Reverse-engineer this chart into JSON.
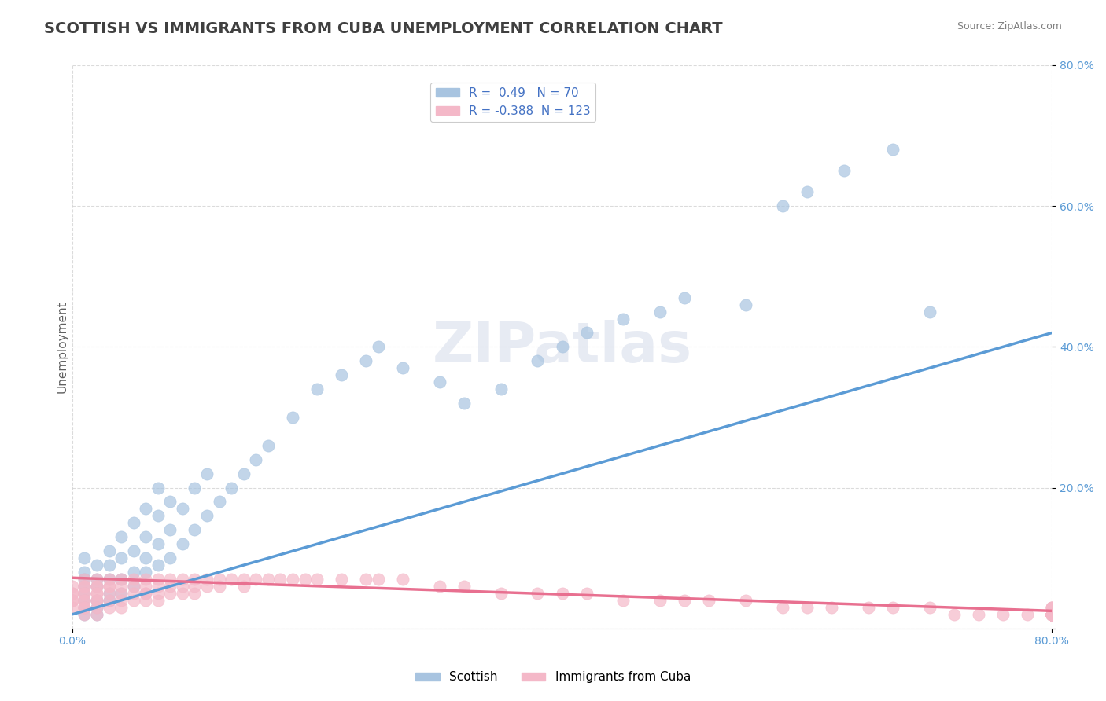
{
  "title": "SCOTTISH VS IMMIGRANTS FROM CUBA UNEMPLOYMENT CORRELATION CHART",
  "source": "Source: ZipAtlas.com",
  "xlabel": "",
  "ylabel": "Unemployment",
  "x_min": 0.0,
  "x_max": 0.8,
  "y_min": 0.0,
  "y_max": 0.8,
  "x_ticks": [
    0.0,
    0.1,
    0.2,
    0.3,
    0.4,
    0.5,
    0.6,
    0.7,
    0.8
  ],
  "x_tick_labels": [
    "0.0%",
    "",
    "",
    "",
    "",
    "",
    "",
    "",
    "80.0%"
  ],
  "y_tick_labels": [
    "",
    "20.0%",
    "40.0%",
    "60.0%",
    "80.0%"
  ],
  "y_ticks": [
    0.0,
    0.2,
    0.4,
    0.6,
    0.8
  ],
  "grid_color": "#cccccc",
  "background_color": "#ffffff",
  "watermark": "ZIPatlas",
  "series": [
    {
      "name": "Scottish",
      "R": 0.49,
      "N": 70,
      "color": "#a8c4e0",
      "line_color": "#5b9bd5",
      "marker": "o",
      "x": [
        0.01,
        0.01,
        0.01,
        0.01,
        0.01,
        0.01,
        0.01,
        0.01,
        0.02,
        0.02,
        0.02,
        0.02,
        0.02,
        0.02,
        0.03,
        0.03,
        0.03,
        0.03,
        0.03,
        0.04,
        0.04,
        0.04,
        0.04,
        0.05,
        0.05,
        0.05,
        0.05,
        0.06,
        0.06,
        0.06,
        0.06,
        0.07,
        0.07,
        0.07,
        0.07,
        0.08,
        0.08,
        0.08,
        0.09,
        0.09,
        0.1,
        0.1,
        0.11,
        0.11,
        0.12,
        0.13,
        0.14,
        0.15,
        0.16,
        0.18,
        0.2,
        0.22,
        0.24,
        0.25,
        0.27,
        0.3,
        0.32,
        0.35,
        0.38,
        0.4,
        0.42,
        0.45,
        0.48,
        0.5,
        0.55,
        0.58,
        0.6,
        0.63,
        0.67,
        0.7
      ],
      "y": [
        0.02,
        0.03,
        0.04,
        0.05,
        0.06,
        0.07,
        0.08,
        0.1,
        0.02,
        0.03,
        0.04,
        0.06,
        0.07,
        0.09,
        0.04,
        0.05,
        0.07,
        0.09,
        0.11,
        0.05,
        0.07,
        0.1,
        0.13,
        0.06,
        0.08,
        0.11,
        0.15,
        0.08,
        0.1,
        0.13,
        0.17,
        0.09,
        0.12,
        0.16,
        0.2,
        0.1,
        0.14,
        0.18,
        0.12,
        0.17,
        0.14,
        0.2,
        0.16,
        0.22,
        0.18,
        0.2,
        0.22,
        0.24,
        0.26,
        0.3,
        0.34,
        0.36,
        0.38,
        0.4,
        0.37,
        0.35,
        0.32,
        0.34,
        0.38,
        0.4,
        0.42,
        0.44,
        0.45,
        0.47,
        0.46,
        0.6,
        0.62,
        0.65,
        0.68,
        0.45
      ],
      "trend_x": [
        0.0,
        0.8
      ],
      "trend_y": [
        0.02,
        0.42
      ]
    },
    {
      "name": "Immigrants from Cuba",
      "R": -0.388,
      "N": 123,
      "color": "#f4b8c8",
      "line_color": "#e87090",
      "marker": "o",
      "x": [
        0.0,
        0.0,
        0.0,
        0.0,
        0.0,
        0.0,
        0.01,
        0.01,
        0.01,
        0.01,
        0.01,
        0.01,
        0.01,
        0.01,
        0.01,
        0.01,
        0.02,
        0.02,
        0.02,
        0.02,
        0.02,
        0.02,
        0.02,
        0.02,
        0.02,
        0.03,
        0.03,
        0.03,
        0.03,
        0.03,
        0.03,
        0.04,
        0.04,
        0.04,
        0.04,
        0.04,
        0.05,
        0.05,
        0.05,
        0.05,
        0.06,
        0.06,
        0.06,
        0.06,
        0.06,
        0.07,
        0.07,
        0.07,
        0.07,
        0.08,
        0.08,
        0.08,
        0.09,
        0.09,
        0.09,
        0.1,
        0.1,
        0.1,
        0.11,
        0.11,
        0.12,
        0.12,
        0.13,
        0.14,
        0.14,
        0.15,
        0.16,
        0.17,
        0.18,
        0.19,
        0.2,
        0.22,
        0.24,
        0.25,
        0.27,
        0.3,
        0.32,
        0.35,
        0.38,
        0.4,
        0.42,
        0.45,
        0.48,
        0.5,
        0.52,
        0.55,
        0.58,
        0.6,
        0.62,
        0.65,
        0.67,
        0.7,
        0.72,
        0.74,
        0.76,
        0.78,
        0.8,
        0.8,
        0.8,
        0.8,
        0.8,
        0.8,
        0.8,
        0.8,
        0.8,
        0.8,
        0.8,
        0.8,
        0.8,
        0.8,
        0.8,
        0.8,
        0.8,
        0.8,
        0.8,
        0.8,
        0.8,
        0.8,
        0.8,
        0.8,
        0.8,
        0.8,
        0.8
      ],
      "y": [
        0.06,
        0.05,
        0.05,
        0.04,
        0.04,
        0.03,
        0.07,
        0.06,
        0.06,
        0.05,
        0.05,
        0.04,
        0.04,
        0.03,
        0.03,
        0.02,
        0.07,
        0.06,
        0.06,
        0.05,
        0.05,
        0.04,
        0.04,
        0.03,
        0.02,
        0.07,
        0.06,
        0.06,
        0.05,
        0.04,
        0.03,
        0.07,
        0.06,
        0.05,
        0.04,
        0.03,
        0.07,
        0.06,
        0.05,
        0.04,
        0.07,
        0.06,
        0.05,
        0.05,
        0.04,
        0.07,
        0.06,
        0.05,
        0.04,
        0.07,
        0.06,
        0.05,
        0.07,
        0.06,
        0.05,
        0.07,
        0.06,
        0.05,
        0.07,
        0.06,
        0.07,
        0.06,
        0.07,
        0.07,
        0.06,
        0.07,
        0.07,
        0.07,
        0.07,
        0.07,
        0.07,
        0.07,
        0.07,
        0.07,
        0.07,
        0.06,
        0.06,
        0.05,
        0.05,
        0.05,
        0.05,
        0.04,
        0.04,
        0.04,
        0.04,
        0.04,
        0.03,
        0.03,
        0.03,
        0.03,
        0.03,
        0.03,
        0.02,
        0.02,
        0.02,
        0.02,
        0.02,
        0.03,
        0.03,
        0.03,
        0.02,
        0.02,
        0.02,
        0.02,
        0.02,
        0.02,
        0.02,
        0.02,
        0.02,
        0.02,
        0.02,
        0.02,
        0.02,
        0.02,
        0.02,
        0.02,
        0.02,
        0.02,
        0.02,
        0.02,
        0.02,
        0.02,
        0.02
      ],
      "trend_x": [
        0.0,
        0.8
      ],
      "trend_y": [
        0.072,
        0.025
      ]
    }
  ],
  "legend_R_color": "#4472c4",
  "legend_N_color": "#4472c4",
  "title_color": "#404040",
  "axis_label_color": "#5b9bd5",
  "title_fontsize": 14,
  "axis_fontsize": 11,
  "watermark_color": "#d0d8e8",
  "watermark_fontsize": 52
}
